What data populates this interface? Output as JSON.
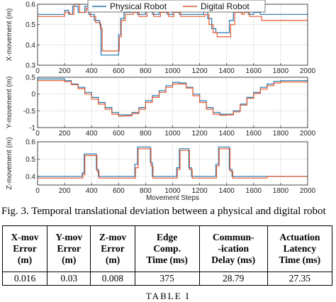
{
  "chart_data": [
    {
      "type": "line",
      "ylabel": "X-movement (m)",
      "xlabel": "",
      "xlim": [
        0,
        2000
      ],
      "ylim": [
        0.3,
        0.6
      ],
      "xticks": [
        "0",
        "200",
        "400",
        "600",
        "800",
        "1000",
        "1200",
        "1400",
        "1600",
        "1800",
        "2000"
      ],
      "yticks": [
        "0.3",
        "0.4",
        "0.5",
        "0.6"
      ],
      "legend_position": "top-right",
      "series": [
        {
          "name": "Physical Robot",
          "color": "#1f77b4",
          "points": [
            [
              0,
              0.55
            ],
            [
              150,
              0.55
            ],
            [
              200,
              0.57
            ],
            [
              230,
              0.55
            ],
            [
              260,
              0.59
            ],
            [
              300,
              0.56
            ],
            [
              350,
              0.59
            ],
            [
              380,
              0.55
            ],
            [
              420,
              0.52
            ],
            [
              460,
              0.5
            ],
            [
              470,
              0.35
            ],
            [
              580,
              0.35
            ],
            [
              600,
              0.45
            ],
            [
              615,
              0.53
            ],
            [
              640,
              0.56
            ],
            [
              700,
              0.57
            ],
            [
              740,
              0.55
            ],
            [
              800,
              0.58
            ],
            [
              850,
              0.55
            ],
            [
              900,
              0.58
            ],
            [
              960,
              0.55
            ],
            [
              1000,
              0.57
            ],
            [
              1050,
              0.55
            ],
            [
              1100,
              0.55
            ],
            [
              1150,
              0.55
            ],
            [
              1200,
              0.55
            ],
            [
              1230,
              0.57
            ],
            [
              1260,
              0.53
            ],
            [
              1290,
              0.48
            ],
            [
              1320,
              0.46
            ],
            [
              1380,
              0.46
            ],
            [
              1420,
              0.52
            ],
            [
              1450,
              0.57
            ],
            [
              1500,
              0.56
            ],
            [
              1520,
              0.59
            ],
            [
              1560,
              0.55
            ],
            [
              1600,
              0.56
            ],
            [
              1650,
              0.55
            ],
            [
              1700,
              0.55
            ],
            [
              1800,
              0.55
            ],
            [
              1900,
              0.55
            ],
            [
              2000,
              0.55
            ]
          ]
        },
        {
          "name": "Digital Robot",
          "color": "#e8572a",
          "points": [
            [
              0,
              0.54
            ],
            [
              150,
              0.54
            ],
            [
              200,
              0.56
            ],
            [
              240,
              0.55
            ],
            [
              270,
              0.61
            ],
            [
              310,
              0.56
            ],
            [
              360,
              0.58
            ],
            [
              390,
              0.54
            ],
            [
              430,
              0.51
            ],
            [
              465,
              0.48
            ],
            [
              478,
              0.37
            ],
            [
              585,
              0.37
            ],
            [
              605,
              0.44
            ],
            [
              620,
              0.52
            ],
            [
              650,
              0.55
            ],
            [
              710,
              0.56
            ],
            [
              750,
              0.54
            ],
            [
              810,
              0.57
            ],
            [
              860,
              0.54
            ],
            [
              910,
              0.56
            ],
            [
              970,
              0.54
            ],
            [
              1010,
              0.56
            ],
            [
              1060,
              0.54
            ],
            [
              1200,
              0.54
            ],
            [
              1240,
              0.55
            ],
            [
              1270,
              0.5
            ],
            [
              1300,
              0.46
            ],
            [
              1330,
              0.44
            ],
            [
              1390,
              0.44
            ],
            [
              1430,
              0.5
            ],
            [
              1460,
              0.56
            ],
            [
              1510,
              0.55
            ],
            [
              1530,
              0.56
            ],
            [
              1570,
              0.54
            ],
            [
              1620,
              0.54
            ],
            [
              1660,
              0.52
            ],
            [
              1700,
              0.52
            ],
            [
              1800,
              0.52
            ],
            [
              1900,
              0.52
            ],
            [
              2000,
              0.52
            ]
          ]
        }
      ]
    },
    {
      "type": "line",
      "ylabel": "Y-movement (m)",
      "xlabel": "",
      "xlim": [
        0,
        2000
      ],
      "ylim": [
        -1,
        0.5
      ],
      "xticks": [
        "0",
        "200",
        "400",
        "600",
        "800",
        "1000",
        "1200",
        "1400",
        "1600",
        "1800",
        "2000"
      ],
      "yticks": [
        "-1",
        "-0.5",
        "0",
        "0.5"
      ],
      "series": [
        {
          "name": "Physical Robot",
          "color": "#1f77b4",
          "points": [
            [
              0,
              0.45
            ],
            [
              50,
              0.45
            ],
            [
              150,
              0.45
            ],
            [
              200,
              0.4
            ],
            [
              250,
              0.3
            ],
            [
              300,
              0.2
            ],
            [
              350,
              0.05
            ],
            [
              400,
              -0.1
            ],
            [
              450,
              -0.25
            ],
            [
              500,
              -0.4
            ],
            [
              550,
              -0.55
            ],
            [
              600,
              -0.62
            ],
            [
              650,
              -0.62
            ],
            [
              700,
              -0.55
            ],
            [
              750,
              -0.4
            ],
            [
              800,
              -0.2
            ],
            [
              850,
              -0.05
            ],
            [
              900,
              0.1
            ],
            [
              950,
              0.25
            ],
            [
              1000,
              0.35
            ],
            [
              1050,
              0.33
            ],
            [
              1100,
              0.2
            ],
            [
              1150,
              0.0
            ],
            [
              1200,
              -0.2
            ],
            [
              1250,
              -0.4
            ],
            [
              1300,
              -0.55
            ],
            [
              1350,
              -0.6
            ],
            [
              1400,
              -0.6
            ],
            [
              1450,
              -0.5
            ],
            [
              1500,
              -0.3
            ],
            [
              1550,
              -0.1
            ],
            [
              1600,
              0.05
            ],
            [
              1650,
              0.2
            ],
            [
              1700,
              0.3
            ],
            [
              1750,
              0.38
            ],
            [
              1800,
              0.4
            ],
            [
              2000,
              0.42
            ]
          ]
        },
        {
          "name": "Digital Robot",
          "color": "#e8572a",
          "points": [
            [
              0,
              0.4
            ],
            [
              50,
              0.4
            ],
            [
              150,
              0.4
            ],
            [
              200,
              0.37
            ],
            [
              250,
              0.28
            ],
            [
              300,
              0.16
            ],
            [
              350,
              0.0
            ],
            [
              400,
              -0.15
            ],
            [
              450,
              -0.3
            ],
            [
              500,
              -0.45
            ],
            [
              550,
              -0.6
            ],
            [
              600,
              -0.66
            ],
            [
              650,
              -0.65
            ],
            [
              700,
              -0.58
            ],
            [
              750,
              -0.45
            ],
            [
              800,
              -0.25
            ],
            [
              850,
              -0.1
            ],
            [
              900,
              0.05
            ],
            [
              950,
              0.2
            ],
            [
              1000,
              0.3
            ],
            [
              1050,
              0.3
            ],
            [
              1100,
              0.18
            ],
            [
              1150,
              -0.05
            ],
            [
              1200,
              -0.25
            ],
            [
              1250,
              -0.45
            ],
            [
              1300,
              -0.6
            ],
            [
              1350,
              -0.63
            ],
            [
              1400,
              -0.62
            ],
            [
              1450,
              -0.53
            ],
            [
              1500,
              -0.33
            ],
            [
              1550,
              -0.13
            ],
            [
              1600,
              0.02
            ],
            [
              1650,
              0.15
            ],
            [
              1700,
              0.25
            ],
            [
              1750,
              0.33
            ],
            [
              1800,
              0.36
            ],
            [
              2000,
              0.36
            ]
          ]
        }
      ]
    },
    {
      "type": "line",
      "ylabel": "Z-movement (m)",
      "xlabel": "Movement Steps",
      "xlim": [
        0,
        2000
      ],
      "ylim": [
        0.35,
        0.6
      ],
      "xticks": [
        "0",
        "200",
        "400",
        "600",
        "800",
        "1000",
        "1200",
        "1400",
        "1600",
        "1800",
        "2000"
      ],
      "yticks": [
        "0.4",
        "0.5",
        "0.6"
      ],
      "series": [
        {
          "name": "Physical Robot",
          "color": "#1f77b4",
          "points": [
            [
              0,
              0.4
            ],
            [
              300,
              0.4
            ],
            [
              330,
              0.42
            ],
            [
              345,
              0.53
            ],
            [
              420,
              0.53
            ],
            [
              435,
              0.44
            ],
            [
              450,
              0.4
            ],
            [
              700,
              0.4
            ],
            [
              720,
              0.47
            ],
            [
              740,
              0.57
            ],
            [
              820,
              0.57
            ],
            [
              835,
              0.48
            ],
            [
              850,
              0.4
            ],
            [
              1000,
              0.4
            ],
            [
              1030,
              0.45
            ],
            [
              1050,
              0.56
            ],
            [
              1100,
              0.56
            ],
            [
              1120,
              0.45
            ],
            [
              1140,
              0.4
            ],
            [
              1300,
              0.4
            ],
            [
              1320,
              0.47
            ],
            [
              1340,
              0.57
            ],
            [
              1400,
              0.57
            ],
            [
              1420,
              0.44
            ],
            [
              1440,
              0.4
            ],
            [
              1700,
              0.4
            ],
            [
              2000,
              0.4
            ]
          ]
        },
        {
          "name": "Digital Robot",
          "color": "#e8572a",
          "points": [
            [
              0,
              0.39
            ],
            [
              300,
              0.39
            ],
            [
              335,
              0.41
            ],
            [
              350,
              0.52
            ],
            [
              425,
              0.52
            ],
            [
              440,
              0.43
            ],
            [
              455,
              0.39
            ],
            [
              705,
              0.39
            ],
            [
              725,
              0.45
            ],
            [
              745,
              0.56
            ],
            [
              825,
              0.56
            ],
            [
              840,
              0.46
            ],
            [
              855,
              0.39
            ],
            [
              1005,
              0.39
            ],
            [
              1035,
              0.44
            ],
            [
              1055,
              0.55
            ],
            [
              1105,
              0.55
            ],
            [
              1125,
              0.44
            ],
            [
              1145,
              0.39
            ],
            [
              1305,
              0.39
            ],
            [
              1325,
              0.46
            ],
            [
              1345,
              0.56
            ],
            [
              1405,
              0.56
            ],
            [
              1425,
              0.43
            ],
            [
              1445,
              0.39
            ],
            [
              1700,
              0.4
            ],
            [
              2000,
              0.4
            ]
          ]
        }
      ]
    }
  ],
  "caption": "Fig. 3.  Temporal translational deviation between a physical and digital robot",
  "table": {
    "headers": [
      [
        "X-mov",
        "Error",
        "(m)"
      ],
      [
        "Y-mov",
        "Error",
        "(m)"
      ],
      [
        "Z-mov",
        "Error",
        "(m)"
      ],
      [
        "Edge",
        "Comp.",
        "Time (ms)"
      ],
      [
        "Commun-",
        "-ication",
        "Delay (ms)"
      ],
      [
        "Actuation",
        "Latency",
        "Time (ms)"
      ]
    ],
    "values": [
      "0.016",
      "0.03",
      "0.008",
      "375",
      "28.79",
      "27.35"
    ]
  },
  "table_label": "TABLE I"
}
